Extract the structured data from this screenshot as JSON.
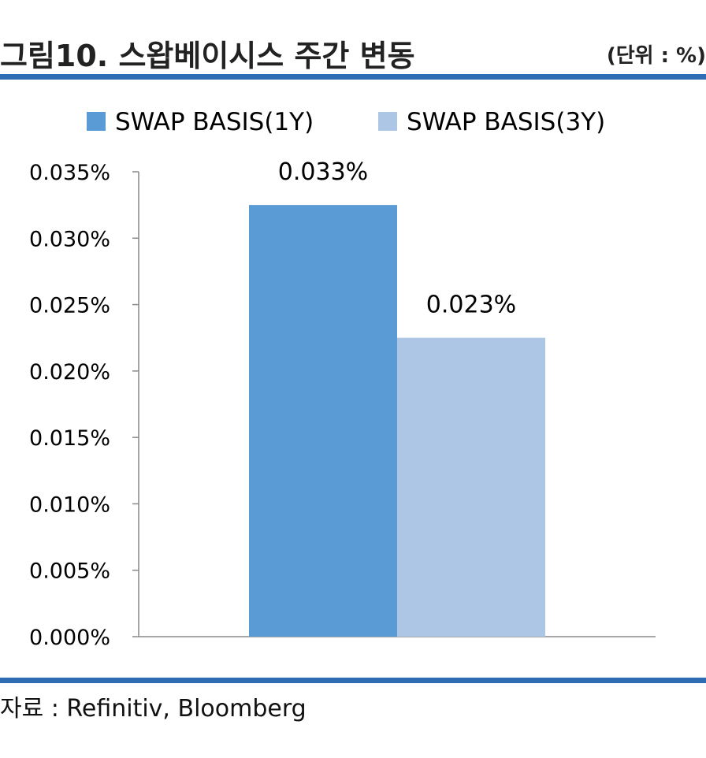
{
  "header": {
    "title": "그림10. 스왑베이시스 주간 변동",
    "unit": "(단위 : %)"
  },
  "footer": {
    "source": "자료 : Refinitiv, Bloomberg"
  },
  "colors": {
    "rule": "#2e6db4",
    "axis": "#888888"
  },
  "chart_data": {
    "type": "bar",
    "categories": [
      ""
    ],
    "series": [
      {
        "name": "SWAP BASIS(1Y)",
        "values": [
          0.0325
        ],
        "label": "0.033%",
        "color": "#5b9bd5"
      },
      {
        "name": "SWAP BASIS(3Y)",
        "values": [
          0.0225
        ],
        "label": "0.023%",
        "color": "#adc6e5"
      }
    ],
    "yticks": [
      "0.000%",
      "0.005%",
      "0.010%",
      "0.015%",
      "0.020%",
      "0.025%",
      "0.030%",
      "0.035%"
    ],
    "ylim": [
      0,
      0.035
    ],
    "legend": "top",
    "grid": false
  }
}
